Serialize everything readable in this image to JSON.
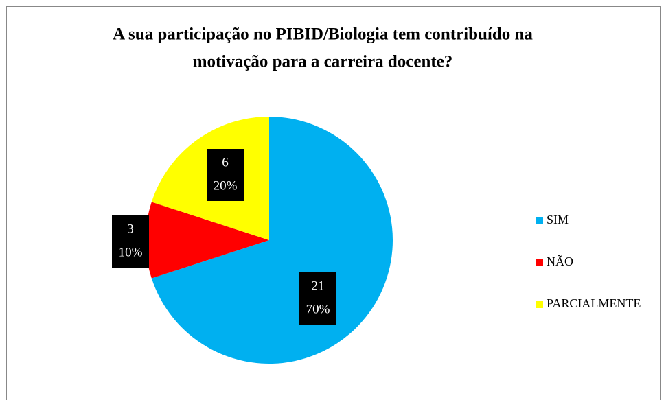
{
  "chart_data": {
    "type": "pie",
    "title": [
      "A sua participação  no PIBID/Biologia tem contribuído  na",
      "motivação para a carreira docente?"
    ],
    "categories": [
      "SIM",
      "NÃO",
      "PARCIALMENTE"
    ],
    "values": [
      21,
      3,
      6
    ],
    "percent_labels": [
      "70%",
      "10%",
      "20%"
    ],
    "colors": [
      "#00b0f0",
      "#ff0000",
      "#ffff00"
    ],
    "legend": "right"
  }
}
